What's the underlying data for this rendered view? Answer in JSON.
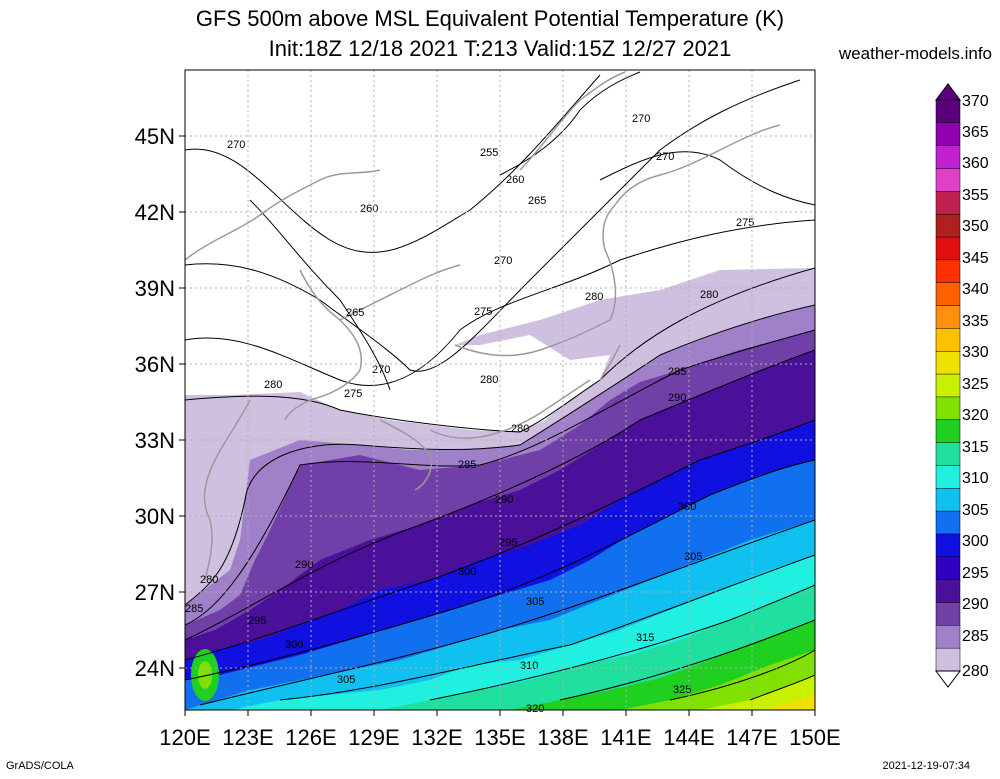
{
  "title_line1": "GFS 500m above MSL Equivalent Potential Temperature (K)",
  "title_line2": "Init:18Z 12/18 2021 T:213 Valid:15Z 12/27 2021",
  "site": "weather-models.info",
  "footer_left": "GrADS/COLA",
  "footer_right": "2021-12-19-07:34",
  "map": {
    "lon_labels": [
      "120E",
      "123E",
      "126E",
      "129E",
      "132E",
      "135E",
      "138E",
      "141E",
      "144E",
      "147E",
      "150E"
    ],
    "lat_labels": [
      "45N",
      "42N",
      "39N",
      "36N",
      "33N",
      "30N",
      "27N",
      "24N"
    ]
  },
  "colorbar": {
    "levels": [
      "370",
      "365",
      "360",
      "355",
      "350",
      "345",
      "340",
      "335",
      "330",
      "325",
      "320",
      "315",
      "310",
      "305",
      "300",
      "295",
      "290",
      "285",
      "280"
    ],
    "colors": [
      "#5a007a",
      "#9000b0",
      "#c020d0",
      "#e040c8",
      "#c02050",
      "#b02020",
      "#e01010",
      "#ff3000",
      "#ff6000",
      "#ff9010",
      "#ffc000",
      "#f0e000",
      "#c8f000",
      "#80e000",
      "#20d020",
      "#20e0a0",
      "#20f0e0",
      "#10c0f0",
      "#1070f0",
      "#1010e0",
      "#3000c0",
      "#4a109a",
      "#7040a8",
      "#a080c8",
      "#d0c0e0"
    ]
  },
  "contour_labels": [
    "270",
    "255",
    "260",
    "265",
    "270",
    "270",
    "275",
    "260",
    "265",
    "270",
    "275",
    "280",
    "280",
    "265",
    "270",
    "275",
    "280",
    "280",
    "280",
    "285",
    "290",
    "285",
    "290",
    "300",
    "295",
    "300",
    "305",
    "290",
    "280",
    "285",
    "295",
    "300",
    "305",
    "305",
    "310",
    "315",
    "325",
    "320"
  ]
}
